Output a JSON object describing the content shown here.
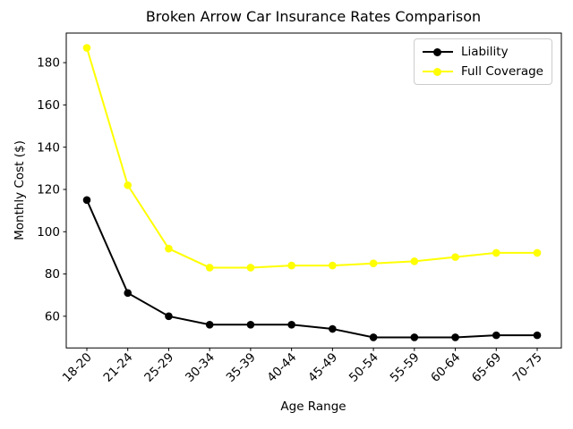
{
  "chart_data": {
    "type": "line",
    "title": "Broken Arrow Car Insurance Rates Comparison",
    "xlabel": "Age Range",
    "ylabel": "Monthly Cost ($)",
    "categories": [
      "18-20",
      "21-24",
      "25-29",
      "30-34",
      "35-39",
      "40-44",
      "45-49",
      "50-54",
      "55-59",
      "60-64",
      "65-69",
      "70-75"
    ],
    "series": [
      {
        "name": "Liability",
        "color": "#000000",
        "values": [
          115,
          71,
          60,
          56,
          56,
          56,
          54,
          50,
          50,
          50,
          51,
          51
        ]
      },
      {
        "name": "Full Coverage",
        "color": "#ffff00",
        "values": [
          187,
          122,
          92,
          83,
          83,
          84,
          84,
          85,
          86,
          88,
          90,
          90
        ]
      }
    ],
    "yticks": [
      60,
      80,
      100,
      120,
      140,
      160,
      180
    ],
    "ylim": [
      45,
      194
    ],
    "grid": false,
    "legend_position": "upper right",
    "marker": "circle",
    "background": "#ffffff",
    "axis_color": "#000000"
  }
}
